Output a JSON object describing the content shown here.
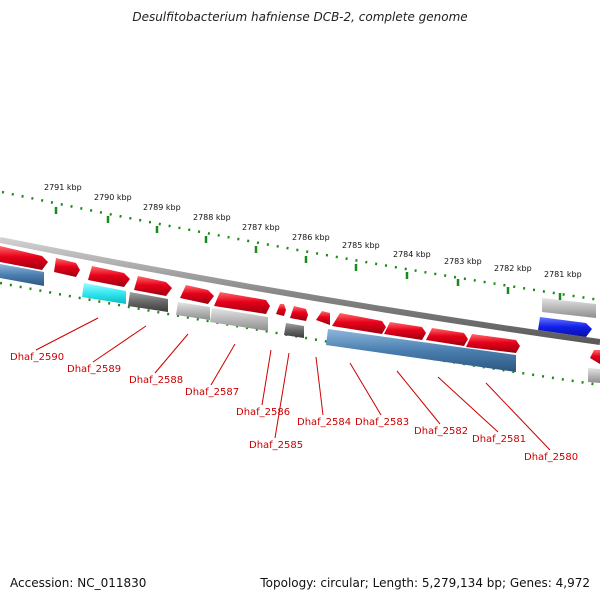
{
  "title": "Desulfitobacterium hafniense DCB-2, complete genome",
  "footer": {
    "accession": "Accession: NC_011830",
    "summary": "Topology: circular; Length: 5,279,134 bp; Genes: 4,972"
  },
  "ticks": [
    {
      "label": "2791 kbp"
    },
    {
      "label": "2790 kbp"
    },
    {
      "label": "2789 kbp"
    },
    {
      "label": "2788 kbp"
    },
    {
      "label": "2787 kbp"
    },
    {
      "label": "2786 kbp"
    },
    {
      "label": "2785 kbp"
    },
    {
      "label": "2784 kbp"
    },
    {
      "label": "2783 kbp"
    },
    {
      "label": "2782 kbp"
    },
    {
      "label": "2781 kbp"
    }
  ],
  "gene_labels": [
    "Dhaf_2590",
    "Dhaf_2589",
    "Dhaf_2588",
    "Dhaf_2587",
    "Dhaf_2586",
    "Dhaf_2585",
    "Dhaf_2584",
    "Dhaf_2583",
    "Dhaf_2582",
    "Dhaf_2581",
    "Dhaf_2580"
  ],
  "colors": {
    "forward_gene": "#e8001a",
    "reverse_cds_blue": "#4a7fb0",
    "gray_feature": "#b8b8b8",
    "dark_feature": "#6a6a6a",
    "cyan_feature": "#30e8f0",
    "blue_feature": "#1020e8",
    "tick_green": "#1a8a1a",
    "label_red": "#cc0000",
    "backbone": "#8a8a8a"
  }
}
